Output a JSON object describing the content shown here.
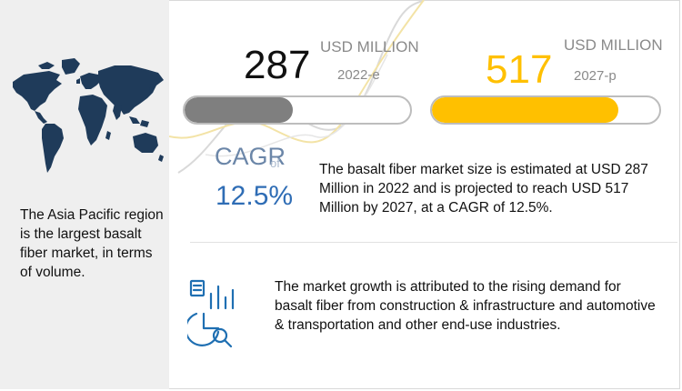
{
  "left_panel": {
    "description": "The Asia Pacific region is the largest basalt fiber market, in terms of volume."
  },
  "market_2022": {
    "value": "287",
    "unit": "USD MILLION",
    "year": "2022-e",
    "bar_fraction": 0.48,
    "color": "#7f7f7f"
  },
  "market_2027": {
    "value": "517",
    "unit": "USD MILLION",
    "year": "2027-p",
    "bar_fraction": 0.82,
    "color": "#ffc000"
  },
  "cagr": {
    "label": "CAGR",
    "of_label": "of",
    "value": "12.5%"
  },
  "summary": "The basalt fiber market size is estimated at USD 287 Million in 2022 and is projected to reach USD 517 Million by 2027, at a CAGR of 12.5%.",
  "growth_note": "The market growth is attributed to the rising demand for basalt fiber from construction & infrastructure and automotive & transportation and other end-use industries.",
  "colors": {
    "accent_blue": "#2f6db5",
    "accent_yellow": "#ffc000",
    "gray_bar": "#7f7f7f",
    "panel_bg": "#efefef"
  },
  "icons": [
    "world-map-icon",
    "analytics-chart-icon"
  ]
}
